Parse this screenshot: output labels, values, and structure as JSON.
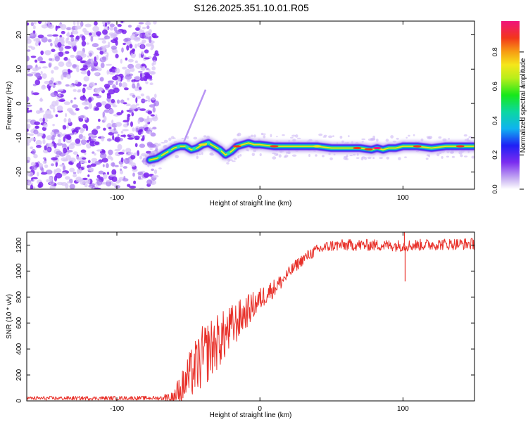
{
  "title": "S126.2025.351.10.01.R05",
  "chart_data": [
    {
      "type": "heatmap",
      "name": "spectrogram",
      "xlabel": "Height of straight line (km)",
      "ylabel": "Frequency (Hz)",
      "xlim": [
        -163,
        150
      ],
      "ylim": [
        -25,
        24
      ],
      "x_ticks": [
        -100,
        0,
        100
      ],
      "y_ticks": [
        20,
        10,
        0,
        -10,
        -20
      ],
      "noise_region_x": [
        -163,
        -75
      ],
      "ridge": {
        "x": [
          -77,
          -72,
          -68,
          -64,
          -60,
          -56,
          -52,
          -48,
          -44,
          -40,
          -36,
          -32,
          -28,
          -24,
          -20,
          -16,
          -12,
          -8,
          -4,
          0,
          10,
          20,
          30,
          40,
          50,
          60,
          70,
          78,
          82,
          86,
          90,
          95,
          100,
          110,
          120,
          130,
          140,
          150
        ],
        "freq": [
          -16.5,
          -16,
          -15,
          -14,
          -13,
          -12.5,
          -12.5,
          -13.5,
          -13,
          -12,
          -11.5,
          -12.5,
          -13.5,
          -15,
          -14,
          -12.5,
          -12,
          -11.5,
          -12,
          -12,
          -12.5,
          -12.5,
          -12.5,
          -12.5,
          -13,
          -13,
          -13,
          -13.5,
          -13,
          -13.5,
          -13,
          -13,
          -12.5,
          -12.5,
          -13,
          -12.5,
          -12.5,
          -12.5
        ]
      },
      "colorbar": {
        "label": "Normalized spectral amplitude",
        "ticks": [
          "0.0",
          "0.2",
          "0.4",
          "0.6",
          "0.8"
        ],
        "tick_values": [
          0.0,
          0.2,
          0.4,
          0.6,
          0.8
        ]
      }
    },
    {
      "type": "line",
      "name": "snr",
      "xlabel": "Height of straight line (km)",
      "ylabel": "SNR (10 * v/v)",
      "xlim": [
        -163,
        150
      ],
      "ylim": [
        0,
        1300
      ],
      "x_ticks": [
        -100,
        0,
        100
      ],
      "y_ticks": [
        0,
        200,
        400,
        600,
        800,
        1000,
        1200
      ],
      "color": "#e8312a",
      "trend": {
        "x": [
          -163,
          -70,
          -62,
          -55,
          -50,
          -45,
          -40,
          -35,
          -30,
          -25,
          -20,
          -15,
          -10,
          -5,
          0,
          5,
          10,
          15,
          20,
          25,
          30,
          35,
          40,
          45,
          50,
          60,
          80,
          100,
          120,
          150
        ],
        "y": [
          20,
          22,
          30,
          90,
          180,
          260,
          330,
          400,
          450,
          500,
          560,
          620,
          680,
          730,
          780,
          830,
          870,
          920,
          980,
          1040,
          1090,
          1130,
          1160,
          1180,
          1195,
          1200,
          1200,
          1195,
          1205,
          1210
        ]
      },
      "amplitude_envelope": {
        "x": [
          -163,
          -70,
          -60,
          -50,
          -40,
          -30,
          -20,
          -10,
          0,
          10,
          20,
          30,
          40,
          60,
          100,
          150
        ],
        "noise": [
          15,
          15,
          70,
          180,
          250,
          220,
          180,
          130,
          90,
          70,
          50,
          45,
          45,
          45,
          45,
          45
        ]
      },
      "spikes": [
        {
          "x": 101,
          "y": 1340
        },
        {
          "x": 101.5,
          "y": 920
        }
      ]
    }
  ]
}
